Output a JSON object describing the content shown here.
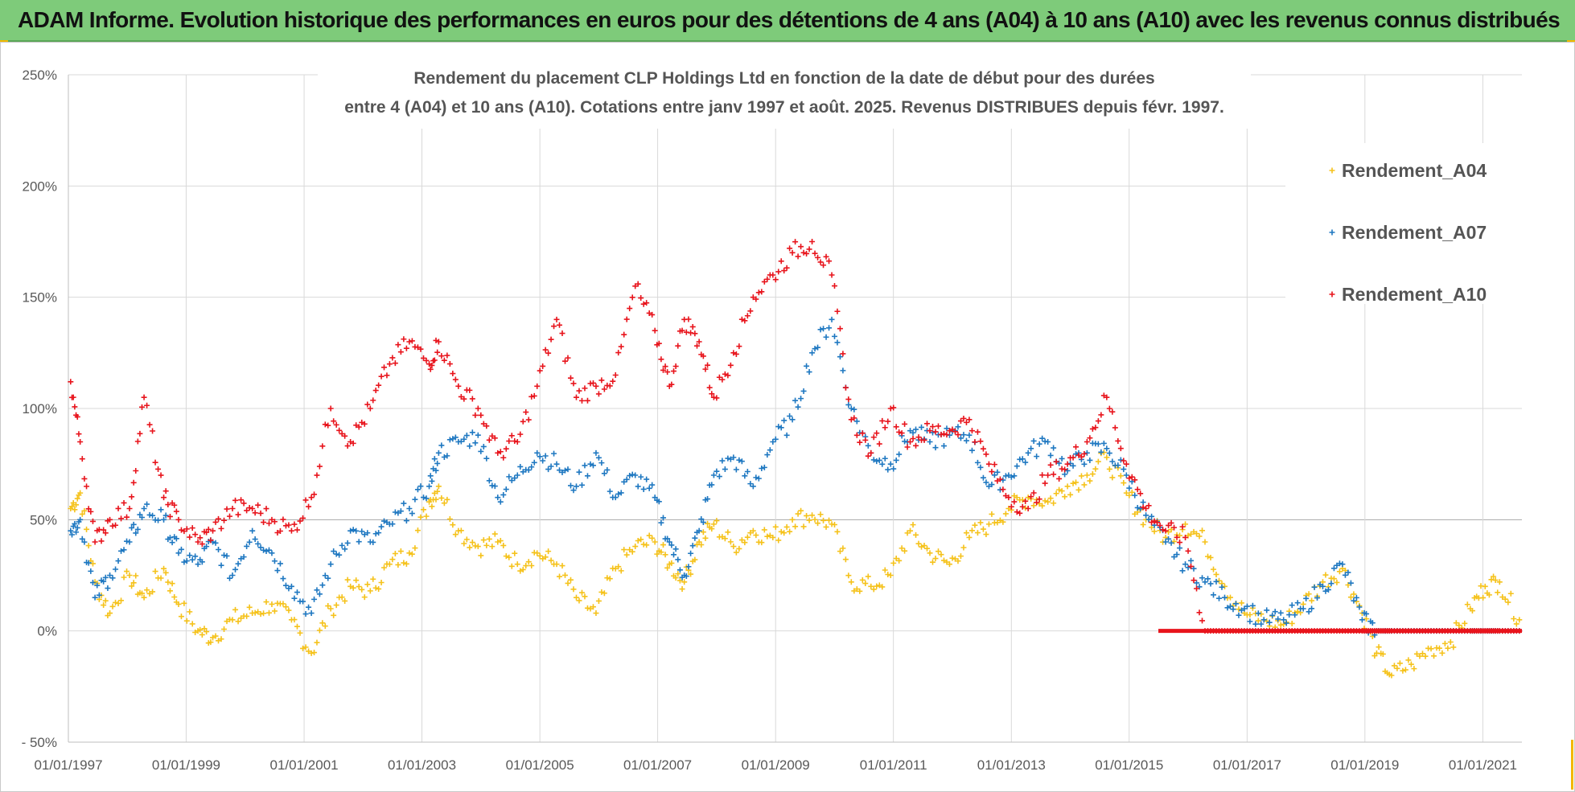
{
  "header": {
    "title": "ADAM Informe. Evolution historique des performances en euros pour des détentions de 4 ans (A04) à 10 ans (A10) avec les revenus connus distribués"
  },
  "colors": {
    "banner": "#7ecb7a",
    "accent": "#f2b800",
    "A04": "#f5c21b",
    "A07": "#1f78c1",
    "A10": "#e8141c"
  },
  "chart_data": {
    "type": "scatter",
    "title_line1": "Rendement du placement CLP Holdings Ltd en fonction de la date de début pour des durées",
    "title_line2": "entre 4 (A04) et 10 ans (A10).  Cotations entre janv 1997 et août. 2025. Revenus DISTRIBUES depuis févr. 1997.",
    "xlabel": "",
    "ylabel": "",
    "x_range": [
      "01/01/1997",
      "31/08/2021"
    ],
    "ylim": [
      -50,
      250
    ],
    "y_ticks": [
      "- 50%",
      "0%",
      "50%",
      "100%",
      "150%",
      "200%",
      "250%"
    ],
    "x_ticks": [
      "01/01/1997",
      "01/01/1999",
      "01/01/2001",
      "01/01/2003",
      "01/01/2005",
      "01/01/2007",
      "01/01/2009",
      "01/01/2011",
      "01/01/2013",
      "01/01/2015",
      "01/01/2017",
      "01/01/2019",
      "01/01/2021"
    ],
    "grid": true,
    "legend_position": "top-right",
    "marker": "+",
    "series": [
      {
        "name": "Rendement_A04",
        "x": [
          "1997-01",
          "1997-03",
          "1997-06",
          "1997-09",
          "1998-01",
          "1998-04",
          "1998-08",
          "1998-11",
          "1999-03",
          "1999-06",
          "1999-10",
          "2000-02",
          "2000-06",
          "2000-10",
          "2001-02",
          "2001-06",
          "2001-10",
          "2002-02",
          "2002-06",
          "2002-10",
          "2003-02",
          "2003-04",
          "2003-08",
          "2003-12",
          "2004-04",
          "2004-08",
          "2004-12",
          "2005-04",
          "2005-08",
          "2005-12",
          "2006-04",
          "2006-08",
          "2006-12",
          "2007-03",
          "2007-06",
          "2007-09",
          "2007-12",
          "2008-04",
          "2008-08",
          "2008-12",
          "2009-04",
          "2009-08",
          "2009-12",
          "2010-04",
          "2010-08",
          "2010-12",
          "2011-04",
          "2011-08",
          "2011-12",
          "2012-04",
          "2012-08",
          "2012-12",
          "2013-04",
          "2013-08",
          "2013-12",
          "2014-04",
          "2014-08",
          "2014-12",
          "2015-04",
          "2015-08",
          "2015-12",
          "2016-04",
          "2016-08",
          "2016-12",
          "2017-04",
          "2017-08",
          "2017-12",
          "2018-04",
          "2018-08",
          "2018-12",
          "2019-03",
          "2019-06",
          "2019-10",
          "2020-02",
          "2020-06",
          "2020-10",
          "2021-01",
          "2021-04",
          "2021-08"
        ],
        "values": [
          55,
          62,
          22,
          8,
          25,
          15,
          28,
          12,
          0,
          -3,
          5,
          8,
          12,
          5,
          -10,
          10,
          20,
          18,
          30,
          35,
          58,
          65,
          45,
          38,
          40,
          30,
          35,
          30,
          15,
          8,
          28,
          38,
          40,
          30,
          22,
          40,
          48,
          38,
          45,
          42,
          50,
          52,
          48,
          22,
          20,
          25,
          45,
          35,
          30,
          42,
          48,
          55,
          60,
          58,
          65,
          70,
          78,
          62,
          50,
          42,
          48,
          40,
          20,
          8,
          5,
          3,
          12,
          22,
          28,
          8,
          -10,
          -20,
          -15,
          -8,
          -5,
          10,
          20,
          22,
          5
        ]
      },
      {
        "name": "Rendement_A07",
        "x": [
          "1997-01",
          "1997-03",
          "1997-06",
          "1997-09",
          "1998-01",
          "1998-04",
          "1998-08",
          "1998-11",
          "1999-03",
          "1999-06",
          "1999-10",
          "2000-02",
          "2000-06",
          "2000-10",
          "2001-02",
          "2001-06",
          "2001-10",
          "2002-02",
          "2002-06",
          "2002-10",
          "2003-02",
          "2003-04",
          "2003-08",
          "2003-12",
          "2004-04",
          "2004-08",
          "2004-12",
          "2005-04",
          "2005-08",
          "2005-12",
          "2006-04",
          "2006-08",
          "2006-12",
          "2007-03",
          "2007-06",
          "2007-09",
          "2007-12",
          "2008-04",
          "2008-08",
          "2008-12",
          "2009-04",
          "2009-08",
          "2009-12",
          "2010-04",
          "2010-08",
          "2010-12",
          "2011-04",
          "2011-08",
          "2011-12",
          "2012-04",
          "2012-08",
          "2012-12",
          "2013-04",
          "2013-08",
          "2013-12",
          "2014-04",
          "2014-08",
          "2014-12",
          "2015-04",
          "2015-08",
          "2015-12",
          "2016-04",
          "2016-08",
          "2016-12",
          "2017-04",
          "2017-08",
          "2017-12",
          "2018-04",
          "2018-08",
          "2018-12",
          "2019-03",
          "2019-06",
          "2019-10",
          "2020-02",
          "2020-06",
          "2020-10",
          "2021-01",
          "2021-04",
          "2021-08"
        ],
        "values": [
          45,
          50,
          15,
          25,
          40,
          55,
          50,
          35,
          30,
          40,
          25,
          45,
          35,
          20,
          8,
          30,
          45,
          40,
          48,
          55,
          65,
          80,
          85,
          88,
          60,
          70,
          80,
          75,
          65,
          80,
          60,
          70,
          60,
          40,
          25,
          45,
          70,
          78,
          65,
          85,
          95,
          125,
          140,
          100,
          80,
          75,
          90,
          85,
          88,
          88,
          65,
          70,
          80,
          85,
          72,
          80,
          82,
          70,
          52,
          40,
          30,
          22,
          15,
          10,
          5,
          5,
          10,
          20,
          30,
          5,
          0,
          0,
          0,
          0,
          0,
          0,
          0,
          0,
          0
        ]
      },
      {
        "name": "Rendement_A10",
        "x": [
          "1997-01",
          "1997-03",
          "1997-06",
          "1997-09",
          "1998-01",
          "1998-04",
          "1998-08",
          "1998-11",
          "1999-03",
          "1999-06",
          "1999-10",
          "2000-02",
          "2000-06",
          "2000-10",
          "2001-02",
          "2001-06",
          "2001-10",
          "2002-02",
          "2002-06",
          "2002-10",
          "2003-02",
          "2003-04",
          "2003-08",
          "2003-12",
          "2004-04",
          "2004-08",
          "2004-12",
          "2005-04",
          "2005-08",
          "2005-12",
          "2006-04",
          "2006-08",
          "2006-12",
          "2007-03",
          "2007-06",
          "2007-09",
          "2007-12",
          "2008-04",
          "2008-08",
          "2008-12",
          "2009-04",
          "2009-08",
          "2009-12",
          "2010-04",
          "2010-08",
          "2010-12",
          "2011-04",
          "2011-08",
          "2011-12",
          "2012-04",
          "2012-08",
          "2012-12",
          "2013-04",
          "2013-08",
          "2013-12",
          "2014-04",
          "2014-08",
          "2014-12",
          "2015-04",
          "2015-08",
          "2015-12",
          "2016-04",
          "2016-08",
          "2016-12",
          "2017-04",
          "2017-08",
          "2017-12",
          "2018-04",
          "2018-08",
          "2018-12",
          "2019-03",
          "2019-06",
          "2019-10",
          "2020-02",
          "2020-06",
          "2020-10",
          "2021-01",
          "2021-04",
          "2021-08"
        ],
        "values": [
          112,
          85,
          40,
          50,
          55,
          105,
          60,
          50,
          40,
          45,
          55,
          55,
          50,
          45,
          60,
          100,
          85,
          100,
          120,
          130,
          120,
          130,
          110,
          100,
          80,
          85,
          110,
          140,
          105,
          110,
          115,
          155,
          135,
          110,
          140,
          130,
          105,
          125,
          150,
          160,
          170,
          175,
          160,
          95,
          80,
          100,
          85,
          90,
          90,
          95,
          75,
          60,
          55,
          70,
          75,
          85,
          105,
          75,
          55,
          45,
          42,
          0,
          0,
          0,
          0,
          0,
          0,
          0,
          0,
          0,
          0,
          0,
          0,
          0,
          0,
          0,
          0,
          0,
          0
        ]
      }
    ]
  }
}
